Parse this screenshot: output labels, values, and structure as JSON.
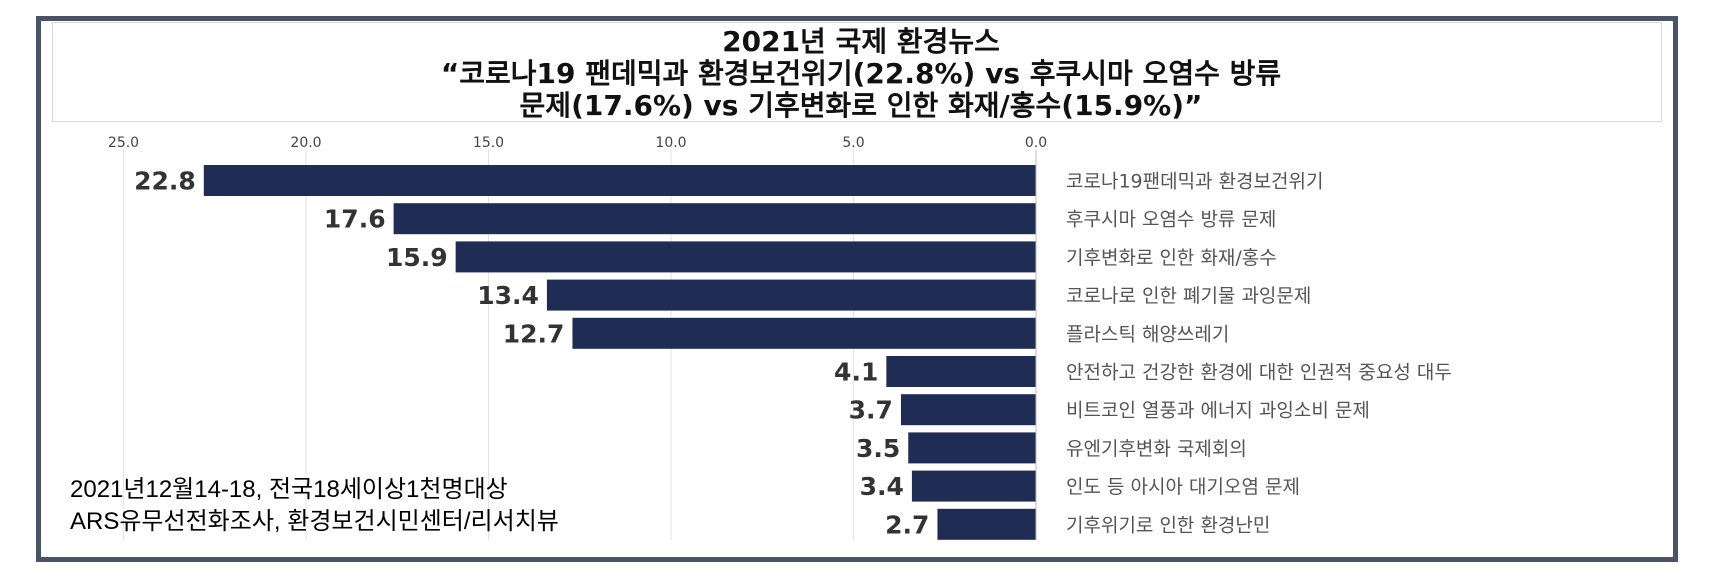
{
  "header": {
    "title_line1": "2021년 국제 환경뉴스",
    "title_line2": "“코로나19 팬데믹과 환경보건위기(22.8%) vs 후쿠시마 오염수 방류",
    "title_line3": "문제(17.6%) vs 기후변화로 인한 화재/홍수(15.9%)”"
  },
  "footnote": {
    "line1": "2021년12월14-18, 전국18세이상1천명대상",
    "line2": "ARS유무선전화조사, 환경보건시민센터/리서치뷰"
  },
  "colors": {
    "bar": "#1f2d55",
    "frame": "#4a5468",
    "label": "#555555",
    "value": "#333333"
  },
  "chart_data": {
    "type": "bar",
    "orientation": "horizontal",
    "axis_reversed": true,
    "xlim": [
      0,
      25
    ],
    "xticks": [
      "25.0",
      "20.0",
      "15.0",
      "10.0",
      "5.0",
      "0.0"
    ],
    "xtick_values": [
      25,
      20,
      15,
      10,
      5,
      0
    ],
    "grid": true,
    "categories": [
      "코로나19팬데믹과 환경보건위기",
      "후쿠시마 오염수 방류 문제",
      "기후변화로 인한 화재/홍수",
      "코로나로 인한 폐기물 과잉문제",
      "플라스틱 해양쓰레기",
      "안전하고 건강한 환경에 대한 인권적 중요성 대두",
      "비트코인 열풍과 에너지 과잉소비 문제",
      "유엔기후변화 국제회의",
      "인도 등 아시아 대기오염 문제",
      "기후위기로 인한 환경난민"
    ],
    "values": [
      22.8,
      17.6,
      15.9,
      13.4,
      12.7,
      4.1,
      3.7,
      3.5,
      3.4,
      2.7
    ],
    "value_labels": [
      "22.8",
      "17.6",
      "15.9",
      "13.4",
      "12.7",
      "4.1",
      "3.7",
      "3.5",
      "3.4",
      "2.7"
    ]
  }
}
